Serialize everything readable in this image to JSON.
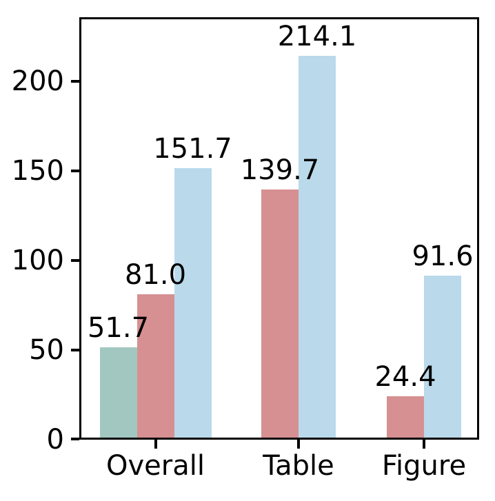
{
  "chart_data": {
    "type": "bar",
    "title": "",
    "xlabel": "",
    "ylabel": "",
    "categories": [
      "Overall",
      "Table",
      "Figure"
    ],
    "series": [
      {
        "name": "teal",
        "color": "#a2c7c1",
        "values": [
          51.7,
          null,
          null
        ]
      },
      {
        "name": "pink-red",
        "color": "#d69092",
        "values": [
          81.0,
          139.7,
          24.4
        ]
      },
      {
        "name": "light-blue",
        "color": "#bad9eb",
        "values": [
          151.7,
          214.1,
          91.6
        ]
      }
    ],
    "value_labels": [
      "51.7",
      "81.0",
      "151.7",
      "139.7",
      "214.1",
      "24.4",
      "91.6"
    ],
    "yticks": [
      0,
      50,
      100,
      150,
      200
    ],
    "ylim": [
      0,
      235.8
    ],
    "grid": false,
    "legend": "none",
    "spine_color": "#000000",
    "text_color": "#000000"
  }
}
